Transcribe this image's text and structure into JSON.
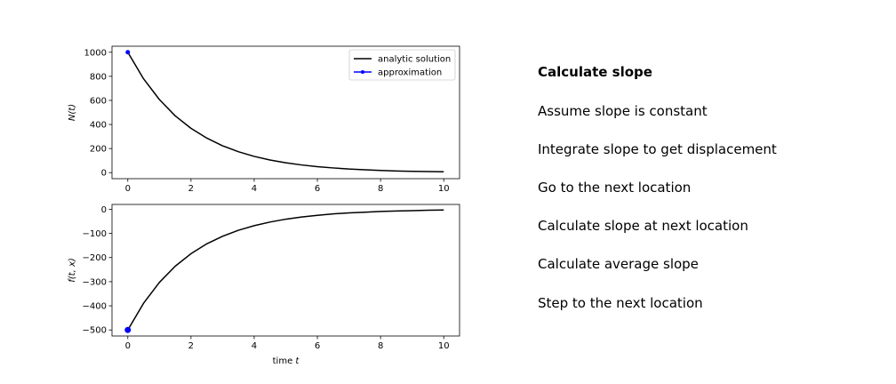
{
  "chart_data": [
    {
      "type": "line",
      "title": "",
      "xlabel": "",
      "ylabel": "N(t)",
      "xlim": [
        -0.5,
        10.5
      ],
      "ylim": [
        -50,
        1050
      ],
      "xticks": [
        0,
        2,
        4,
        6,
        8,
        10
      ],
      "yticks": [
        0,
        200,
        400,
        600,
        800,
        1000
      ],
      "legend_position": "top-right",
      "series": [
        {
          "name": "analytic solution",
          "color": "#000000",
          "style": "line",
          "x": [
            0,
            0.5,
            1,
            1.5,
            2,
            2.5,
            3,
            3.5,
            4,
            4.5,
            5,
            5.5,
            6,
            6.5,
            7,
            7.5,
            8,
            8.5,
            9,
            9.5,
            10
          ],
          "y": [
            1000,
            779,
            607,
            472,
            368,
            287,
            223,
            174,
            135,
            105,
            82,
            64,
            50,
            39,
            30,
            24,
            18,
            14,
            11,
            9,
            7
          ]
        },
        {
          "name": "approximation",
          "color": "#0000ff",
          "style": "line-marker",
          "x": [
            0
          ],
          "y": [
            1000
          ]
        }
      ]
    },
    {
      "type": "line",
      "title": "",
      "xlabel": "time t",
      "ylabel": "f(t, x)",
      "xlim": [
        -0.5,
        10.5
      ],
      "ylim": [
        -525,
        20
      ],
      "xticks": [
        0,
        2,
        4,
        6,
        8,
        10
      ],
      "yticks": [
        0,
        -100,
        -200,
        -300,
        -400,
        -500
      ],
      "series": [
        {
          "color": "#000000",
          "style": "line",
          "x": [
            0,
            0.5,
            1,
            1.5,
            2,
            2.5,
            3,
            3.5,
            4,
            4.5,
            5,
            5.5,
            6,
            6.5,
            7,
            7.5,
            8,
            8.5,
            9,
            9.5,
            10
          ],
          "y": [
            -500,
            -389,
            -303,
            -236,
            -184,
            -143,
            -112,
            -87,
            -68,
            -53,
            -41,
            -32,
            -25,
            -19,
            -15,
            -12,
            -9,
            -7,
            -6,
            -4,
            -3
          ]
        },
        {
          "color": "#0000ff",
          "style": "marker",
          "x": [
            0
          ],
          "y": [
            -500
          ]
        }
      ]
    }
  ],
  "steps": [
    {
      "label": "Calculate slope",
      "active": true
    },
    {
      "label": "Assume slope is constant",
      "active": false
    },
    {
      "label": "Integrate slope to get displacement",
      "active": false
    },
    {
      "label": "Go to the next location",
      "active": false
    },
    {
      "label": "Calculate slope at next location",
      "active": false
    },
    {
      "label": "Calculate average slope",
      "active": false
    },
    {
      "label": "Step to the next location",
      "active": false
    }
  ]
}
